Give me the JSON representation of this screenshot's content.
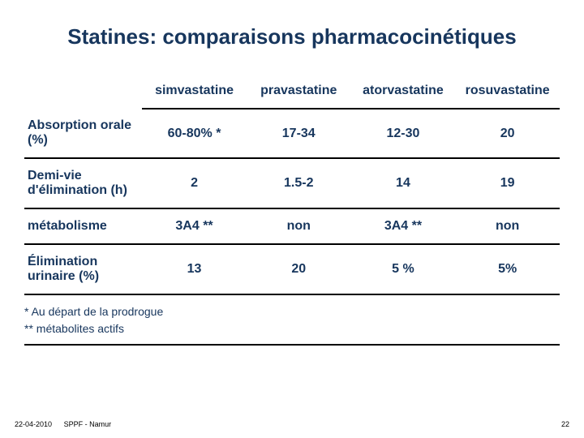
{
  "title": "Statines: comparaisons pharmacocinétiques",
  "table": {
    "columns": [
      "simvastatine",
      "pravastatine",
      "atorvastatine",
      "rosuvastatine"
    ],
    "rows": [
      {
        "label": "Absorption orale (%)",
        "cells": [
          "60-80% *",
          "17-34",
          "12-30",
          "20"
        ]
      },
      {
        "label": "Demi-vie d'élimination (h)",
        "cells": [
          "2",
          "1.5-2",
          "14",
          "19"
        ]
      },
      {
        "label": "métabolisme",
        "cells": [
          "3A4 **",
          "non",
          "3A4 **",
          "non"
        ]
      },
      {
        "label": "Élimination urinaire (%)",
        "cells": [
          "13",
          "20",
          "5 %",
          "5%"
        ]
      }
    ]
  },
  "footnotes": {
    "line1": "*   Au départ de la prodrogue",
    "line2": "** métabolites actifs"
  },
  "footer": {
    "date": "22-04-2010",
    "source": "SPPF - Namur",
    "page": "22"
  },
  "colors": {
    "heading": "#17365d",
    "border": "#000000",
    "background": "#ffffff"
  }
}
